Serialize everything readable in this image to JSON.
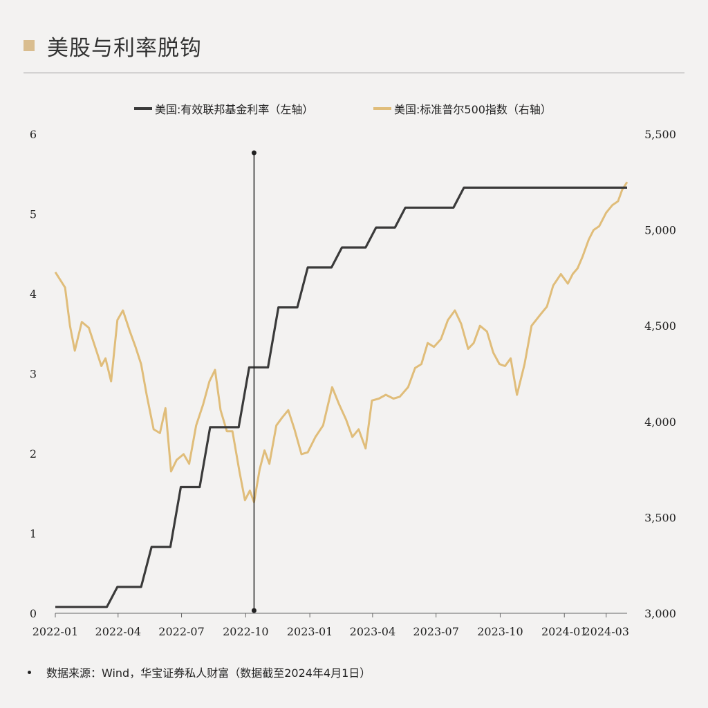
{
  "header": {
    "title": "美股与利率脱钩"
  },
  "source_note": "数据来源：Wind，华宝证券私人财富（数据截至2024年4月1日）",
  "colors": {
    "fed": "#3a3a3a",
    "spx": "#e0bd7a",
    "marker": "#d9bd8f"
  },
  "chart_data": {
    "type": "line",
    "title": "",
    "x_ticks": [
      "2022-01",
      "2022-04",
      "2022-07",
      "2022-10",
      "2023-01",
      "2023-04",
      "2023-07",
      "2023-10",
      "2024-01",
      "2024-03"
    ],
    "x_range": [
      "2022-01",
      "2024-03"
    ],
    "y_left": {
      "range": [
        0,
        6
      ],
      "ticks": [
        "0",
        "1",
        "2",
        "3",
        "4",
        "5",
        "6"
      ]
    },
    "y_right": {
      "range": [
        3000,
        5500
      ],
      "ticks": [
        "3,000",
        "3,500",
        "4,000",
        "4,500",
        "5,000",
        "5,500"
      ]
    },
    "grid": false,
    "legend_position": "top",
    "annotation": {
      "type": "vertical-line",
      "x": "2022-10-13"
    },
    "series": [
      {
        "name": "美国:有效联邦基金利率（左轴）",
        "axis": "left",
        "points": [
          [
            "2022-01-01",
            0.08
          ],
          [
            "2022-03-16",
            0.08
          ],
          [
            "2022-03-31",
            0.33
          ],
          [
            "2022-05-04",
            0.33
          ],
          [
            "2022-05-19",
            0.83
          ],
          [
            "2022-06-15",
            0.83
          ],
          [
            "2022-06-30",
            1.58
          ],
          [
            "2022-07-27",
            1.58
          ],
          [
            "2022-08-11",
            2.33
          ],
          [
            "2022-09-21",
            2.33
          ],
          [
            "2022-10-06",
            3.08
          ],
          [
            "2022-11-02",
            3.08
          ],
          [
            "2022-11-17",
            3.83
          ],
          [
            "2022-12-14",
            3.83
          ],
          [
            "2022-12-29",
            4.33
          ],
          [
            "2023-02-01",
            4.33
          ],
          [
            "2023-02-16",
            4.58
          ],
          [
            "2023-03-22",
            4.58
          ],
          [
            "2023-04-06",
            4.83
          ],
          [
            "2023-05-03",
            4.83
          ],
          [
            "2023-05-18",
            5.08
          ],
          [
            "2023-07-26",
            5.08
          ],
          [
            "2023-08-10",
            5.33
          ],
          [
            "2024-03-31",
            5.33
          ]
        ]
      },
      {
        "name": "美国:标准普尔500指数（右轴）",
        "axis": "right",
        "points": [
          [
            "2022-01-01",
            4780
          ],
          [
            "2022-01-15",
            4700
          ],
          [
            "2022-01-22",
            4500
          ],
          [
            "2022-01-29",
            4370
          ],
          [
            "2022-02-08",
            4520
          ],
          [
            "2022-02-18",
            4490
          ],
          [
            "2022-02-28",
            4380
          ],
          [
            "2022-03-08",
            4290
          ],
          [
            "2022-03-14",
            4330
          ],
          [
            "2022-03-22",
            4210
          ],
          [
            "2022-03-31",
            4530
          ],
          [
            "2022-04-08",
            4580
          ],
          [
            "2022-04-18",
            4470
          ],
          [
            "2022-04-26",
            4390
          ],
          [
            "2022-05-04",
            4300
          ],
          [
            "2022-05-12",
            4140
          ],
          [
            "2022-05-22",
            3960
          ],
          [
            "2022-05-31",
            3940
          ],
          [
            "2022-06-08",
            4070
          ],
          [
            "2022-06-16",
            3740
          ],
          [
            "2022-06-24",
            3800
          ],
          [
            "2022-07-04",
            3830
          ],
          [
            "2022-07-12",
            3780
          ],
          [
            "2022-07-22",
            3980
          ],
          [
            "2022-08-01",
            4090
          ],
          [
            "2022-08-10",
            4210
          ],
          [
            "2022-08-18",
            4270
          ],
          [
            "2022-08-26",
            4060
          ],
          [
            "2022-09-04",
            3950
          ],
          [
            "2022-09-12",
            3950
          ],
          [
            "2022-09-22",
            3740
          ],
          [
            "2022-09-30",
            3590
          ],
          [
            "2022-10-07",
            3640
          ],
          [
            "2022-10-13",
            3580
          ],
          [
            "2022-10-21",
            3750
          ],
          [
            "2022-10-28",
            3850
          ],
          [
            "2022-11-04",
            3780
          ],
          [
            "2022-11-14",
            3980
          ],
          [
            "2022-11-22",
            4020
          ],
          [
            "2022-12-01",
            4060
          ],
          [
            "2022-12-10",
            3960
          ],
          [
            "2022-12-20",
            3830
          ],
          [
            "2022-12-29",
            3840
          ],
          [
            "2023-01-09",
            3920
          ],
          [
            "2023-01-20",
            3980
          ],
          [
            "2023-02-02",
            4180
          ],
          [
            "2023-02-12",
            4090
          ],
          [
            "2023-02-22",
            4010
          ],
          [
            "2023-03-03",
            3920
          ],
          [
            "2023-03-12",
            3960
          ],
          [
            "2023-03-22",
            3860
          ],
          [
            "2023-03-31",
            4110
          ],
          [
            "2023-04-10",
            4120
          ],
          [
            "2023-04-20",
            4140
          ],
          [
            "2023-05-01",
            4120
          ],
          [
            "2023-05-10",
            4130
          ],
          [
            "2023-05-22",
            4180
          ],
          [
            "2023-06-01",
            4280
          ],
          [
            "2023-06-10",
            4300
          ],
          [
            "2023-06-19",
            4410
          ],
          [
            "2023-06-28",
            4390
          ],
          [
            "2023-07-08",
            4430
          ],
          [
            "2023-07-18",
            4530
          ],
          [
            "2023-07-28",
            4580
          ],
          [
            "2023-08-06",
            4510
          ],
          [
            "2023-08-16",
            4380
          ],
          [
            "2023-08-24",
            4410
          ],
          [
            "2023-09-02",
            4500
          ],
          [
            "2023-09-12",
            4470
          ],
          [
            "2023-09-21",
            4360
          ],
          [
            "2023-09-30",
            4300
          ],
          [
            "2023-10-08",
            4290
          ],
          [
            "2023-10-16",
            4330
          ],
          [
            "2023-10-25",
            4140
          ],
          [
            "2023-11-05",
            4300
          ],
          [
            "2023-11-15",
            4500
          ],
          [
            "2023-11-28",
            4560
          ],
          [
            "2023-12-07",
            4600
          ],
          [
            "2023-12-16",
            4710
          ],
          [
            "2023-12-27",
            4770
          ],
          [
            "2024-01-06",
            4720
          ],
          [
            "2024-01-13",
            4770
          ],
          [
            "2024-01-20",
            4800
          ],
          [
            "2024-01-27",
            4860
          ],
          [
            "2024-02-05",
            4950
          ],
          [
            "2024-02-12",
            5000
          ],
          [
            "2024-02-20",
            5020
          ],
          [
            "2024-03-01",
            5090
          ],
          [
            "2024-03-10",
            5130
          ],
          [
            "2024-03-18",
            5150
          ],
          [
            "2024-03-24",
            5210
          ],
          [
            "2024-03-31",
            5250
          ]
        ]
      }
    ]
  }
}
